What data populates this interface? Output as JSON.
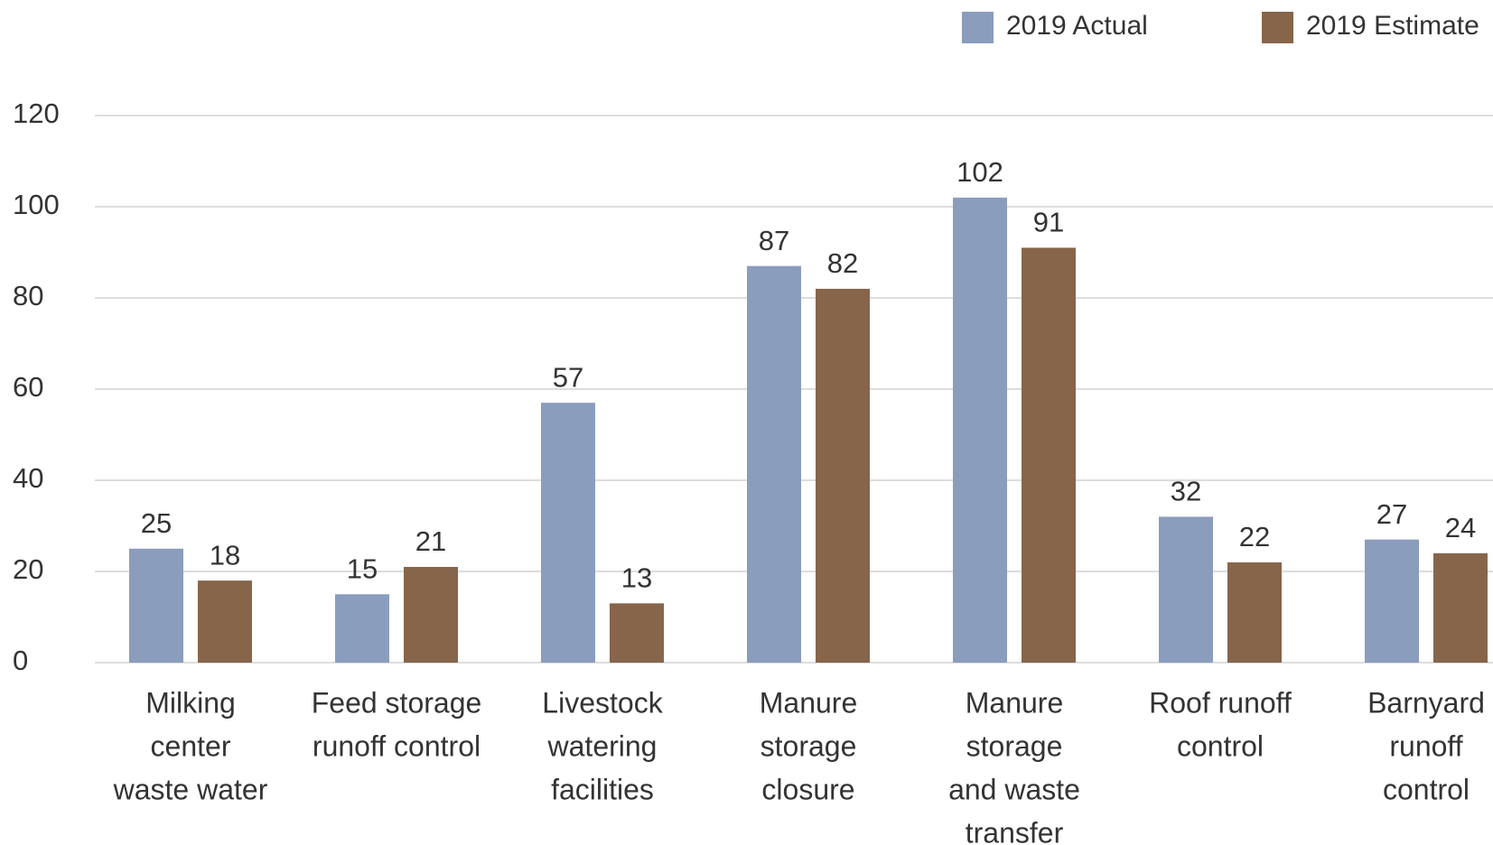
{
  "chart_data": {
    "type": "bar",
    "categories": [
      [
        "Milking",
        "center",
        "waste water"
      ],
      [
        "Feed storage",
        "runoff control"
      ],
      [
        "Livestock",
        "watering",
        "facilities"
      ],
      [
        "Manure",
        "storage",
        "closure"
      ],
      [
        "Manure",
        "storage",
        "and waste",
        "transfer"
      ],
      [
        "Roof runoff",
        "control"
      ],
      [
        "Barnyard",
        "runoff",
        "control"
      ]
    ],
    "series": [
      {
        "name": "2019 Actual",
        "color": "#8b9dbd",
        "values": [
          25,
          15,
          57,
          87,
          102,
          32,
          27
        ]
      },
      {
        "name": "2019 Estimate",
        "color": "#86654b",
        "values": [
          18,
          21,
          13,
          82,
          91,
          22,
          24
        ]
      }
    ],
    "ylim": [
      0,
      120
    ],
    "yticks": [
      0,
      20,
      40,
      60,
      80,
      100,
      120
    ],
    "grid": true,
    "legend": "top-right"
  }
}
